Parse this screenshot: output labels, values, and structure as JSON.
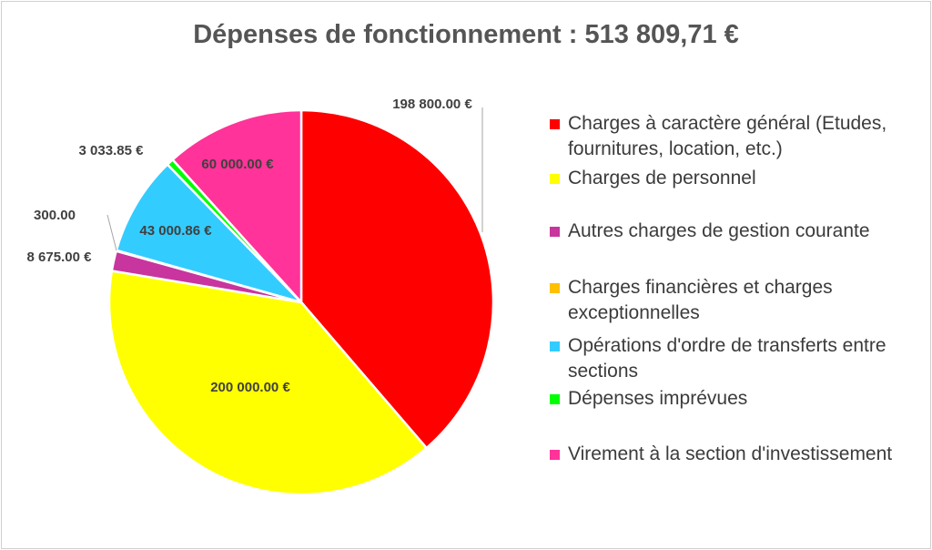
{
  "chart_data": {
    "type": "pie",
    "title": "Dépenses de fonctionnement : 513 809,71 €",
    "slices": [
      {
        "name": "Charges à caractère général (Etudes, fournitures, location, etc.)",
        "value": 198800.0,
        "label": "198 800.00 €",
        "color": "#ff0000"
      },
      {
        "name": "Charges de personnel",
        "value": 200000.0,
        "label": "200 000.00 €",
        "color": "#ffff00"
      },
      {
        "name": "Autres charges de gestion courante",
        "value": 8675.0,
        "label": "8 675.00 €",
        "color": "#c8359e"
      },
      {
        "name": "Charges financières et charges exceptionnelles",
        "value": 300.0,
        "label": "300.00",
        "color": "#ffc000"
      },
      {
        "name": "Opérations d'ordre de transferts entre sections",
        "value": 43000.86,
        "label": "43 000.86 €",
        "color": "#33ccff"
      },
      {
        "name": "Dépenses imprévues",
        "value": 3033.85,
        "label": "3 033.85 €",
        "color": "#00ff00"
      },
      {
        "name": "Virement à la section d'investissement",
        "value": 60000.0,
        "label": "60 000.00 €",
        "color": "#ff3399"
      }
    ],
    "legend_position": "right"
  }
}
